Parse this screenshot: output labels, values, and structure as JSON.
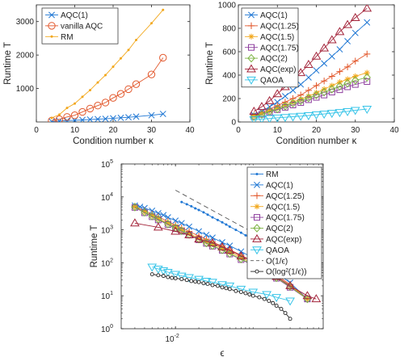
{
  "chart_data": [
    {
      "type": "line",
      "xlabel": "Condition number κ",
      "ylabel": "Runtime T",
      "xlim": [
        0,
        40
      ],
      "ylim": [
        0,
        3500
      ],
      "xticks": [
        0,
        10,
        20,
        30,
        40
      ],
      "yticks": [
        1000,
        2000,
        3000
      ],
      "legend_position": "top-left",
      "series": [
        {
          "name": "AQC(1)",
          "color": "#1f77d4",
          "marker": "x",
          "x": [
            4,
            6,
            8,
            10,
            12,
            14,
            16,
            18,
            20,
            22,
            24,
            26,
            30,
            33
          ],
          "y": [
            15,
            30,
            40,
            50,
            60,
            75,
            85,
            95,
            110,
            125,
            140,
            160,
            200,
            240
          ]
        },
        {
          "name": "vanilla AQC",
          "color": "#e2572b",
          "marker": "o",
          "x": [
            4,
            6,
            8,
            10,
            12,
            14,
            16,
            18,
            20,
            22,
            24,
            26,
            30,
            33
          ],
          "y": [
            40,
            80,
            150,
            200,
            300,
            400,
            490,
            580,
            720,
            840,
            980,
            1130,
            1420,
            1920
          ]
        },
        {
          "name": "RM",
          "color": "#f2a81d",
          "marker": "dot",
          "x": [
            4,
            6,
            8,
            10,
            12,
            14,
            16,
            18,
            20,
            22,
            24,
            26,
            30,
            33
          ],
          "y": [
            120,
            220,
            420,
            550,
            750,
            950,
            1180,
            1400,
            1650,
            1900,
            2150,
            2450,
            2950,
            3350
          ]
        }
      ]
    },
    {
      "type": "line",
      "xlabel": "Condition number κ",
      "ylabel": "Runtime T",
      "xlim": [
        0,
        40
      ],
      "ylim": [
        0,
        1000
      ],
      "xticks": [
        0,
        10,
        20,
        30,
        40
      ],
      "yticks": [
        0,
        200,
        400,
        600,
        800,
        1000
      ],
      "legend_position": "top-left",
      "series": [
        {
          "name": "AQC(1)",
          "color": "#1f77d4",
          "marker": "x",
          "x": [
            4,
            6,
            8,
            10,
            12,
            14,
            16,
            18,
            20,
            22,
            24,
            26,
            28,
            30,
            33
          ],
          "y": [
            60,
            90,
            130,
            170,
            220,
            270,
            320,
            380,
            440,
            500,
            560,
            620,
            690,
            760,
            850
          ]
        },
        {
          "name": "AQC(1.25)",
          "color": "#e2572b",
          "marker": "+",
          "x": [
            4,
            6,
            8,
            10,
            12,
            14,
            16,
            18,
            20,
            22,
            24,
            26,
            28,
            30,
            33
          ],
          "y": [
            55,
            80,
            110,
            140,
            170,
            200,
            230,
            270,
            310,
            350,
            390,
            430,
            470,
            520,
            580
          ]
        },
        {
          "name": "AQC(1.5)",
          "color": "#f2a81d",
          "marker": "*",
          "x": [
            4,
            6,
            8,
            10,
            12,
            14,
            16,
            18,
            20,
            22,
            24,
            26,
            28,
            30,
            33
          ],
          "y": [
            50,
            70,
            95,
            120,
            145,
            170,
            195,
            220,
            250,
            280,
            310,
            340,
            365,
            390,
            420
          ]
        },
        {
          "name": "AQC(1.75)",
          "color": "#8e3f9e",
          "marker": "s",
          "x": [
            4,
            6,
            8,
            10,
            12,
            14,
            16,
            18,
            20,
            22,
            24,
            26,
            28,
            30,
            33
          ],
          "y": [
            45,
            65,
            85,
            105,
            125,
            145,
            165,
            190,
            210,
            230,
            255,
            275,
            300,
            320,
            345
          ]
        },
        {
          "name": "AQC(2)",
          "color": "#7cb342",
          "marker": "d",
          "x": [
            4,
            6,
            8,
            10,
            12,
            14,
            16,
            18,
            20,
            22,
            24,
            26,
            28,
            30,
            33
          ],
          "y": [
            45,
            65,
            90,
            110,
            135,
            160,
            180,
            205,
            230,
            255,
            280,
            305,
            330,
            355,
            380
          ]
        },
        {
          "name": "AQC(exp)",
          "color": "#a3243a",
          "marker": "^",
          "x": [
            4,
            6,
            8,
            10,
            12,
            14,
            16,
            18,
            20,
            22,
            24,
            26,
            28,
            30,
            33
          ],
          "y": [
            90,
            130,
            180,
            240,
            300,
            360,
            420,
            490,
            560,
            630,
            700,
            770,
            830,
            890,
            970
          ]
        },
        {
          "name": "QAOA",
          "color": "#37c4e8",
          "marker": "v",
          "x": [
            4,
            6,
            8,
            10,
            12,
            14,
            16,
            18,
            20,
            22,
            24,
            26,
            28,
            30,
            33
          ],
          "y": [
            20,
            25,
            30,
            35,
            40,
            45,
            50,
            55,
            62,
            68,
            75,
            82,
            90,
            100,
            110
          ]
        }
      ]
    },
    {
      "type": "line",
      "xlabel": "ϵ",
      "ylabel": "Runtime T",
      "xscale": "log",
      "yscale": "log",
      "xlim": [
        0.002,
        0.8
      ],
      "ylim": [
        1,
        100000
      ],
      "xticks": [
        0.01
      ],
      "yticks": [
        1,
        10,
        100,
        1000,
        10000,
        100000
      ],
      "legend_position": "right",
      "series": [
        {
          "name": "RM",
          "color": "#1f77d4",
          "marker": "dot",
          "x": [
            0.012,
            0.014,
            0.016,
            0.018,
            0.02,
            0.023,
            0.026,
            0.03,
            0.035,
            0.04,
            0.045,
            0.05,
            0.06,
            0.07,
            0.08,
            0.1,
            0.12,
            0.14,
            0.17,
            0.2,
            0.25,
            0.3
          ],
          "y": [
            7000,
            6000,
            5200,
            4500,
            4000,
            3400,
            2900,
            2400,
            2000,
            1700,
            1450,
            1250,
            1000,
            820,
            680,
            520,
            420,
            330,
            260,
            200,
            150,
            110
          ]
        },
        {
          "name": "AQC(1)",
          "color": "#1f77d4",
          "marker": "x",
          "x": [
            0.003,
            0.0035,
            0.004,
            0.005,
            0.006,
            0.007,
            0.008,
            0.01,
            0.012,
            0.015,
            0.02,
            0.025,
            0.03,
            0.04,
            0.05,
            0.07,
            0.1,
            0.15,
            0.2,
            0.3,
            0.5
          ],
          "y": [
            5500,
            5000,
            4600,
            3800,
            3200,
            2800,
            2400,
            1900,
            1600,
            1250,
            900,
            700,
            580,
            420,
            330,
            220,
            140,
            80,
            50,
            25,
            8
          ]
        },
        {
          "name": "AQC(1.25)",
          "color": "#e2572b",
          "marker": "+",
          "x": [
            0.003,
            0.004,
            0.005,
            0.006,
            0.008,
            0.01,
            0.012,
            0.015,
            0.02,
            0.025,
            0.03,
            0.04,
            0.05,
            0.07,
            0.1,
            0.15,
            0.2,
            0.3,
            0.5
          ],
          "y": [
            5200,
            3800,
            3000,
            2500,
            1800,
            1400,
            1150,
            900,
            650,
            520,
            430,
            320,
            250,
            170,
            110,
            65,
            42,
            22,
            8
          ]
        },
        {
          "name": "AQC(1.5)",
          "color": "#f2a81d",
          "marker": "*",
          "x": [
            0.003,
            0.004,
            0.005,
            0.006,
            0.008,
            0.01,
            0.012,
            0.015,
            0.02,
            0.025,
            0.03,
            0.04,
            0.05,
            0.07,
            0.1,
            0.15,
            0.2,
            0.3,
            0.5
          ],
          "y": [
            5000,
            3500,
            2700,
            2200,
            1600,
            1250,
            1000,
            780,
            560,
            440,
            370,
            270,
            210,
            145,
            95,
            58,
            38,
            20,
            8
          ]
        },
        {
          "name": "AQC(1.75)",
          "color": "#8e3f9e",
          "marker": "s",
          "x": [
            0.003,
            0.004,
            0.005,
            0.006,
            0.008,
            0.01,
            0.012,
            0.015,
            0.02,
            0.025,
            0.03,
            0.04,
            0.05,
            0.07,
            0.1,
            0.15,
            0.2,
            0.3,
            0.5
          ],
          "y": [
            4800,
            3300,
            2500,
            2000,
            1450,
            1100,
            900,
            700,
            500,
            390,
            320,
            240,
            185,
            125,
            85,
            52,
            34,
            18,
            8
          ]
        },
        {
          "name": "AQC(2)",
          "color": "#7cb342",
          "marker": "d",
          "x": [
            0.003,
            0.004,
            0.005,
            0.006,
            0.008,
            0.01,
            0.012,
            0.015,
            0.02,
            0.025,
            0.03,
            0.04,
            0.05,
            0.07,
            0.1,
            0.15,
            0.2,
            0.3,
            0.5
          ],
          "y": [
            4900,
            3400,
            2600,
            2100,
            1500,
            1150,
            930,
            720,
            520,
            400,
            330,
            245,
            190,
            130,
            88,
            54,
            35,
            19,
            8
          ]
        },
        {
          "name": "AQC(exp)",
          "color": "#a3243a",
          "marker": "^",
          "x": [
            0.003,
            0.006,
            0.01,
            0.015,
            0.02,
            0.03,
            0.04,
            0.05,
            0.07,
            0.1,
            0.15,
            0.2,
            0.3,
            0.5,
            0.65
          ],
          "y": [
            1600,
            1200,
            900,
            700,
            520,
            400,
            300,
            240,
            160,
            110,
            60,
            38,
            20,
            10,
            8
          ]
        },
        {
          "name": "QAOA",
          "color": "#37c4e8",
          "marker": "v",
          "x": [
            0.005,
            0.006,
            0.007,
            0.008,
            0.01,
            0.012,
            0.015,
            0.02,
            0.025,
            0.03,
            0.04,
            0.05,
            0.07,
            0.1,
            0.15,
            0.2,
            0.3
          ],
          "y": [
            75,
            65,
            58,
            52,
            45,
            40,
            36,
            32,
            28,
            26,
            22,
            20,
            16,
            13,
            11,
            9,
            7
          ]
        },
        {
          "name": "O(1/ϵ)",
          "color": "#555555",
          "marker": "none",
          "dash": true,
          "x": [
            0.01,
            0.3
          ],
          "y": [
            16000,
            200
          ]
        },
        {
          "name": "O(log²(1/ϵ))",
          "color": "#222222",
          "marker": "o-small",
          "x": [
            0.005,
            0.006,
            0.007,
            0.008,
            0.009,
            0.01,
            0.012,
            0.014,
            0.016,
            0.018,
            0.02,
            0.023,
            0.026,
            0.03,
            0.035,
            0.04,
            0.045,
            0.05,
            0.06,
            0.07,
            0.08,
            0.09,
            0.1,
            0.12,
            0.14,
            0.16,
            0.18,
            0.2,
            0.23,
            0.26,
            0.3
          ],
          "y": [
            45,
            42,
            40,
            37,
            35,
            34,
            32,
            30,
            28,
            27,
            26,
            24,
            23,
            21,
            20,
            18,
            17,
            16,
            14,
            13,
            12,
            11,
            10,
            9,
            8,
            7,
            6,
            5,
            4,
            3,
            2
          ]
        }
      ]
    }
  ],
  "legend_top_left": [
    "AQC(1)",
    "vanilla AQC",
    "RM"
  ],
  "legend_top_right": [
    "AQC(1)",
    "AQC(1.25)",
    "AQC(1.5)",
    "AQC(1.75)",
    "AQC(2)",
    "AQC(exp)",
    "QAOA"
  ],
  "legend_bottom": [
    "RM",
    "AQC(1)",
    "AQC(1.25)",
    "AQC(1.5)",
    "AQC(1.75)",
    "AQC(2)",
    "AQC(exp)",
    "QAOA",
    "O(1/ϵ)",
    "O(log²(1/ϵ))"
  ]
}
